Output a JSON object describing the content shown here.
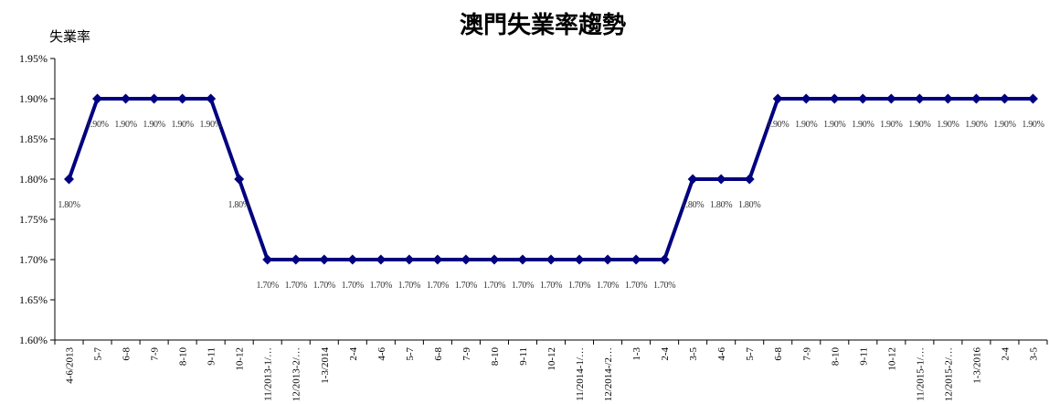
{
  "chart_data": {
    "type": "line",
    "title": "澳門失業率趨勢",
    "ylabel": "失業率",
    "xlabel": "",
    "ylim": [
      1.6,
      1.95
    ],
    "yticks": [
      "1.60%",
      "1.65%",
      "1.70%",
      "1.75%",
      "1.80%",
      "1.85%",
      "1.90%",
      "1.95%"
    ],
    "y_tick_values": [
      1.6,
      1.65,
      1.7,
      1.75,
      1.8,
      1.85,
      1.9,
      1.95
    ],
    "categories": [
      "4-6/2013",
      "5-7",
      "6-8",
      "7-9",
      "8-10",
      "9-11",
      "10-12",
      "11/2013-1/…",
      "12/2013-2/…",
      "1-3/2014",
      "2-4",
      "4-6",
      "5-7",
      "6-8",
      "7-9",
      "8-10",
      "9-11",
      "10-12",
      "11/2014-1/…",
      "12/2014-/2…",
      "1-3",
      "2-4",
      "3-5",
      "4-6",
      "5-7",
      "6-8",
      "7-9",
      "8-10",
      "9-11",
      "10-12",
      "11/2015-1/…",
      "12/2015-2/…",
      "1-3/2016",
      "2-4",
      "3-5"
    ],
    "series": [
      {
        "color": "#000080",
        "values": [
          1.8,
          1.9,
          1.9,
          1.9,
          1.9,
          1.9,
          1.8,
          1.7,
          1.7,
          1.7,
          1.7,
          1.7,
          1.7,
          1.7,
          1.7,
          1.7,
          1.7,
          1.7,
          1.7,
          1.7,
          1.7,
          1.7,
          1.8,
          1.8,
          1.8,
          1.9,
          1.9,
          1.9,
          1.9,
          1.9,
          1.9,
          1.9,
          1.9,
          1.9,
          1.9
        ],
        "labels": [
          "1.80%",
          "1.90%",
          "1.90%",
          "1.90%",
          "1.90%",
          "1.90%",
          "1.80%",
          "1.70%",
          "1.70%",
          "1.70%",
          "1.70%",
          "1.70%",
          "1.70%",
          "1.70%",
          "1.70%",
          "1.70%",
          "1.70%",
          "1.70%",
          "1.70%",
          "1.70%",
          "1.70%",
          "1.70%",
          "1.80%",
          "1.80%",
          "1.80%",
          "1.90%",
          "1.90%",
          "1.90%",
          "1.90%",
          "1.90%",
          "1.90%",
          "1.90%",
          "1.90%",
          "1.90%",
          "1.90%"
        ]
      }
    ],
    "grid": false,
    "legend": "none"
  }
}
